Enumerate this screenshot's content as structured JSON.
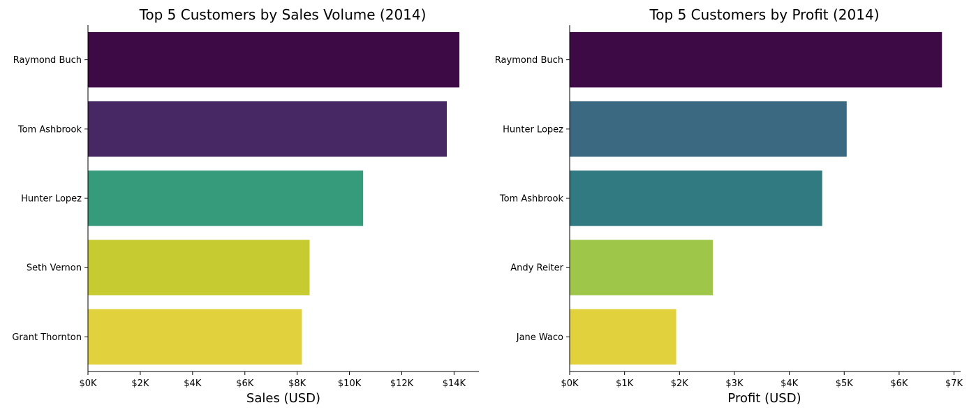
{
  "chart_data": [
    {
      "type": "bar",
      "orientation": "horizontal",
      "title": "Top 5 Customers by Sales Volume (2014)",
      "xlabel": "Sales (USD)",
      "ylabel": "",
      "categories": [
        "Raymond Buch",
        "Tom Ashbrook",
        "Hunter Lopez",
        "Seth Vernon",
        "Grant Thornton"
      ],
      "values": [
        14203,
        13723,
        10523,
        8475,
        8180
      ],
      "colors": [
        "#3e0a45",
        "#482864",
        "#369b7b",
        "#c7cb32",
        "#e1d23d"
      ],
      "xlim": [
        0,
        14950
      ],
      "xticks": [
        0,
        2000,
        4000,
        6000,
        8000,
        10000,
        12000,
        14000
      ],
      "xtick_labels": [
        "$0K",
        "$2K",
        "$4K",
        "$6K",
        "$8K",
        "$10K",
        "$12K",
        "$14K"
      ],
      "grid": false
    },
    {
      "type": "bar",
      "orientation": "horizontal",
      "title": "Top 5 Customers by Profit (2014)",
      "xlabel": "Profit (USD)",
      "ylabel": "",
      "categories": [
        "Raymond Buch",
        "Hunter Lopez",
        "Tom Ashbrook",
        "Andy Reiter",
        "Jane Waco"
      ],
      "values": [
        6780,
        5045,
        4599,
        2607,
        1940
      ],
      "colors": [
        "#3e0a45",
        "#3b6982",
        "#317a81",
        "#9ec74a",
        "#e1d23d"
      ],
      "xlim": [
        0,
        7120
      ],
      "xticks": [
        0,
        1000,
        2000,
        3000,
        4000,
        5000,
        6000,
        7000
      ],
      "xtick_labels": [
        "$0K",
        "$1K",
        "$2K",
        "$3K",
        "$4K",
        "$5K",
        "$6K",
        "$7K"
      ],
      "grid": false
    }
  ]
}
